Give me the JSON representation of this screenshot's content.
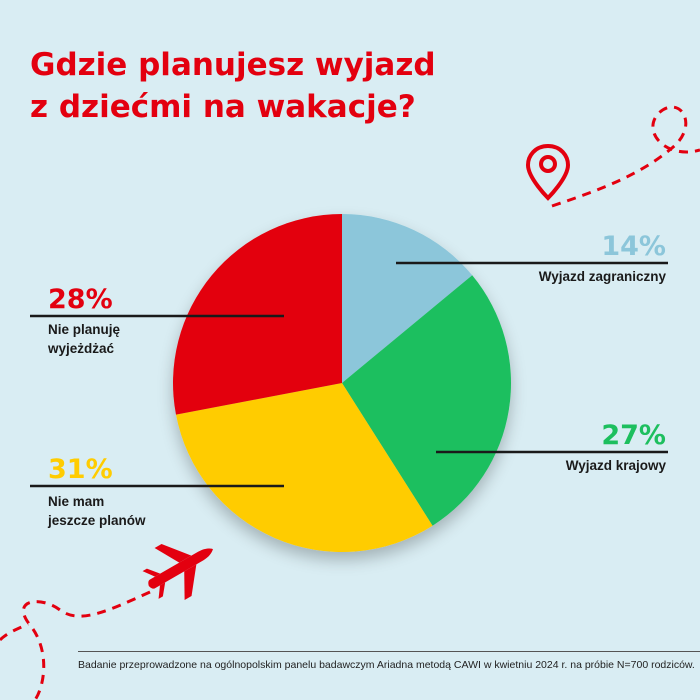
{
  "title": "Gdzie planujesz wyjazd\nz dziećmi na wakacje?",
  "footnote": "Badanie przeprowadzone na ogólnopolskim panelu badawczym Ariadna metodą CAWI w kwietniu 2024 r. na próbie N=700 rodziców.",
  "colors": {
    "background": "#d9edf3",
    "accent": "#e3000f",
    "zagraniczny": "#8cc6da",
    "krajowy": "#1dbf5e",
    "brak_planow": "#ffcc00",
    "nie_planuje": "#e3000f"
  },
  "icons": [
    "map-pin-icon",
    "airplane-icon"
  ],
  "chart_data": {
    "type": "pie",
    "title": "Gdzie planujesz wyjazd z dziećmi na wakacje?",
    "start": "12 o'clock, clockwise",
    "slices": [
      {
        "label": "Wyjazd zagraniczny",
        "value": 14,
        "pct_label": "14%",
        "color": "#8cc6da"
      },
      {
        "label": "Wyjazd krajowy",
        "value": 27,
        "pct_label": "27%",
        "color": "#1dbf5e"
      },
      {
        "label": "Nie mam jeszcze planów",
        "value": 31,
        "pct_label": "31%",
        "color": "#ffcc00"
      },
      {
        "label": "Nie planuję wyjeżdżać",
        "value": 28,
        "pct_label": "28%",
        "color": "#e3000f"
      }
    ]
  }
}
